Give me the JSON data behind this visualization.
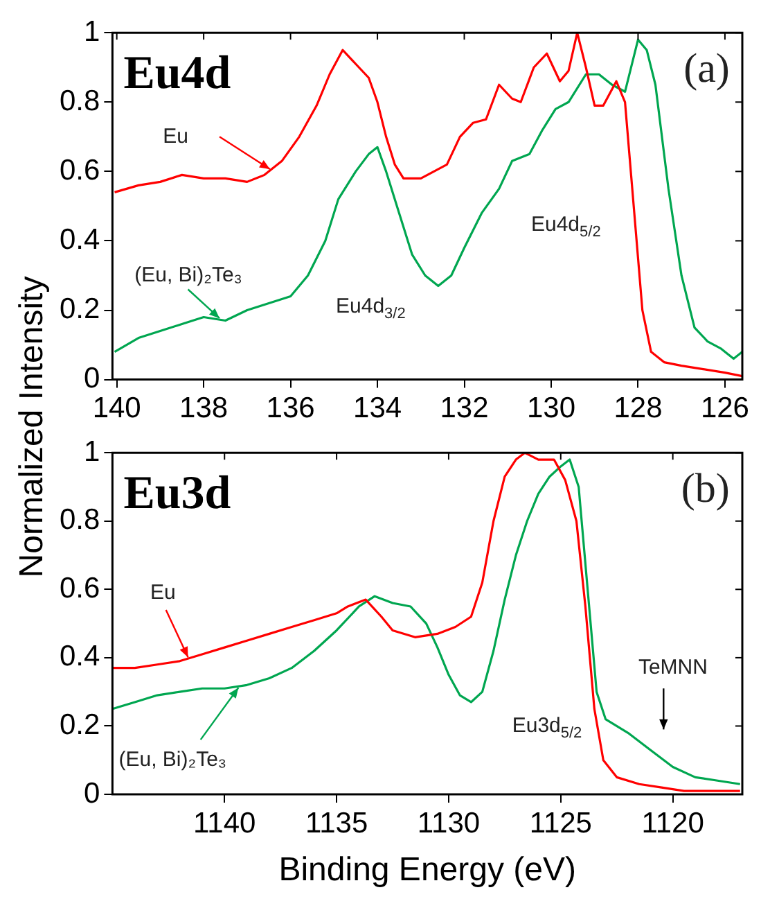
{
  "chart_data": [
    {
      "type": "line",
      "title": "Eu4d",
      "ylabel": "Normalized Intensity",
      "annotations": [
        "(a)",
        "Eu4d$_{3/2}$",
        "Eu4d$_{5/2}$"
      ],
      "xlim": [
        140.1,
        125.6
      ],
      "xticks": [
        140,
        138,
        136,
        134,
        132,
        130,
        128,
        126
      ],
      "ylim": [
        0,
        1
      ],
      "yticks": [
        0,
        0.2,
        0.4,
        0.6,
        0.8,
        1
      ],
      "grid": false,
      "legend": false,
      "marker": "none",
      "line_style": "solid",
      "series": [
        {
          "name": "Eu",
          "color": "#ff0000",
          "x": [
            140.05,
            139.5,
            139,
            138.5,
            138,
            137.5,
            137,
            136.6,
            136.2,
            135.8,
            135.4,
            135.1,
            134.8,
            134.5,
            134.2,
            134,
            133.8,
            133.6,
            133.4,
            133,
            132.7,
            132.4,
            132.1,
            131.8,
            131.5,
            131.2,
            130.9,
            130.7,
            130.4,
            130.1,
            129.8,
            129.6,
            129.4,
            129.2,
            129,
            128.8,
            128.5,
            128.3,
            128.1,
            127.9,
            127.7,
            127.4,
            127,
            126.5,
            126,
            125.6
          ],
          "values": [
            0.54,
            0.56,
            0.57,
            0.59,
            0.58,
            0.58,
            0.57,
            0.59,
            0.63,
            0.7,
            0.79,
            0.88,
            0.95,
            0.91,
            0.87,
            0.8,
            0.7,
            0.62,
            0.58,
            0.58,
            0.6,
            0.62,
            0.7,
            0.74,
            0.75,
            0.85,
            0.81,
            0.8,
            0.9,
            0.94,
            0.86,
            0.89,
            1,
            0.9,
            0.79,
            0.79,
            0.86,
            0.8,
            0.5,
            0.2,
            0.08,
            0.05,
            0.04,
            0.03,
            0.02,
            0.01
          ]
        },
        {
          "name": "(Eu, Bi)₂Te₃",
          "color": "#00a650",
          "x": [
            140.05,
            139.5,
            139,
            138.5,
            138,
            137.5,
            137,
            136.5,
            136,
            135.6,
            135.2,
            134.9,
            134.5,
            134.2,
            134,
            133.8,
            133.5,
            133.2,
            132.9,
            132.6,
            132.3,
            132,
            131.6,
            131.2,
            130.9,
            130.5,
            130.2,
            129.9,
            129.6,
            129.2,
            128.9,
            128.6,
            128.3,
            128,
            127.8,
            127.6,
            127.3,
            127,
            126.7,
            126.4,
            126.1,
            125.8,
            125.6
          ],
          "values": [
            0.08,
            0.12,
            0.14,
            0.16,
            0.18,
            0.17,
            0.2,
            0.22,
            0.24,
            0.3,
            0.4,
            0.52,
            0.6,
            0.65,
            0.67,
            0.6,
            0.48,
            0.36,
            0.3,
            0.27,
            0.3,
            0.38,
            0.48,
            0.55,
            0.63,
            0.65,
            0.72,
            0.78,
            0.8,
            0.88,
            0.88,
            0.85,
            0.83,
            0.98,
            0.95,
            0.85,
            0.55,
            0.3,
            0.15,
            0.11,
            0.09,
            0.06,
            0.08
          ]
        }
      ]
    },
    {
      "type": "line",
      "title": "Eu3d",
      "xlabel": "Binding Energy (eV)",
      "annotations": [
        "(b)",
        "Eu3d$_{5/2}$",
        "TeMNN"
      ],
      "xlim": [
        1145,
        1116.9
      ],
      "xticks": [
        1140,
        1135,
        1130,
        1125,
        1120
      ],
      "ylim": [
        0,
        1
      ],
      "yticks": [
        0,
        0.2,
        0.4,
        0.6,
        0.8,
        1
      ],
      "grid": false,
      "legend": false,
      "marker": "none",
      "line_style": "solid",
      "series": [
        {
          "name": "Eu",
          "color": "#ff0000",
          "x": [
            1145,
            1144,
            1143,
            1142,
            1141,
            1140,
            1139,
            1138,
            1137,
            1136,
            1135,
            1134.5,
            1133.7,
            1133,
            1132.5,
            1131.5,
            1130.5,
            1129.7,
            1129,
            1128.5,
            1128,
            1127.5,
            1127,
            1126.6,
            1126,
            1125.3,
            1124.8,
            1124.3,
            1123.9,
            1123.5,
            1123.1,
            1122.5,
            1121.5,
            1120.5,
            1119.5,
            1117
          ],
          "values": [
            0.37,
            0.37,
            0.38,
            0.39,
            0.41,
            0.43,
            0.45,
            0.47,
            0.49,
            0.51,
            0.53,
            0.55,
            0.57,
            0.52,
            0.48,
            0.46,
            0.47,
            0.49,
            0.52,
            0.62,
            0.8,
            0.93,
            0.98,
            1,
            0.98,
            0.98,
            0.92,
            0.8,
            0.55,
            0.25,
            0.1,
            0.05,
            0.03,
            0.02,
            0.01,
            0.01
          ]
        },
        {
          "name": "(Eu, Bi)₂Te₃",
          "color": "#00a650",
          "x": [
            1145,
            1144,
            1143,
            1142,
            1141,
            1140,
            1139,
            1138,
            1137,
            1136,
            1135,
            1134,
            1133.3,
            1132.5,
            1131.7,
            1131,
            1130.5,
            1130,
            1129.5,
            1129,
            1128.5,
            1128,
            1127.5,
            1127,
            1126.5,
            1126,
            1125.5,
            1125,
            1124.6,
            1124.2,
            1123.8,
            1123.4,
            1123,
            1122,
            1121,
            1120,
            1119,
            1118,
            1117
          ],
          "values": [
            0.25,
            0.27,
            0.29,
            0.3,
            0.31,
            0.31,
            0.32,
            0.34,
            0.37,
            0.42,
            0.48,
            0.55,
            0.58,
            0.56,
            0.55,
            0.5,
            0.43,
            0.35,
            0.29,
            0.27,
            0.3,
            0.42,
            0.57,
            0.7,
            0.8,
            0.88,
            0.93,
            0.96,
            0.98,
            0.9,
            0.6,
            0.3,
            0.22,
            0.18,
            0.13,
            0.08,
            0.05,
            0.04,
            0.03
          ]
        }
      ]
    }
  ]
}
